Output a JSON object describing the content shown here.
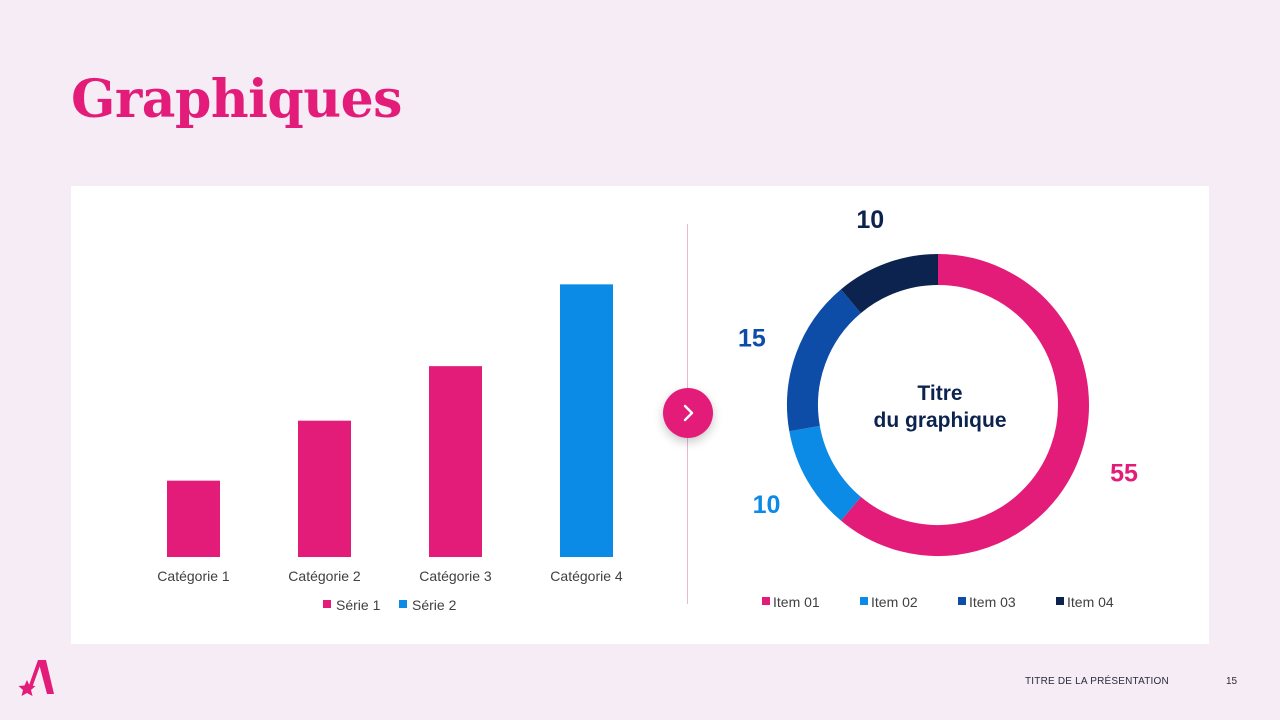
{
  "slide": {
    "title": "Graphiques",
    "footer_text": "TITRE DE LA PRÉSENTATION",
    "page_number": "15"
  },
  "colors": {
    "background": "#f5ecf5",
    "accent": "#e31c79",
    "blue": "#0b8ae6",
    "dark_blue": "#0d4da8",
    "navy": "#0c2350"
  },
  "icons": {
    "next": "chevron-right-icon",
    "logo": "brand-logo-icon"
  },
  "chart_data": [
    {
      "type": "bar",
      "categories": [
        "Catégorie 1",
        "Catégorie 2",
        "Catégorie 3",
        "Catégorie 4"
      ],
      "series": [
        {
          "name": "Série 1",
          "color": "#e31c79",
          "values": [
            1.4,
            2.5,
            3.5,
            null
          ]
        },
        {
          "name": "Série 2",
          "color": "#0b8ae6",
          "values": [
            null,
            null,
            null,
            5.0
          ]
        }
      ],
      "ylim": [
        0,
        5.3
      ],
      "grid": false,
      "legend": "bottom"
    },
    {
      "type": "pie",
      "title": "Titre du graphique",
      "title_lines": [
        "Titre",
        "du graphique"
      ],
      "donut": true,
      "labels": [
        "Item 01",
        "Item 02",
        "Item 03",
        "Item 04"
      ],
      "values": [
        55,
        10,
        15,
        10
      ],
      "colors": [
        "#e31c79",
        "#0b8ae6",
        "#0d4da8",
        "#0c2350"
      ],
      "legend": "bottom"
    }
  ]
}
